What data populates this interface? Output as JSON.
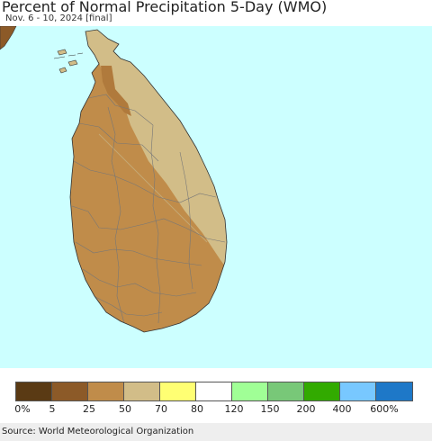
{
  "header": {
    "title": "Percent of Normal Precipitation 5-Day (WMO)",
    "subtitle": "Nov. 6 - 10, 2024 [final]"
  },
  "map": {
    "ocean_color": "#ccffff",
    "land_colors": {
      "below_50": "#c08c4a",
      "50_to_70": "#d2bd88",
      "5_to_25": "#8c5a28"
    }
  },
  "legend": {
    "colors": [
      "#5a3a14",
      "#8c5a28",
      "#c08c4a",
      "#d2bd88",
      "#ffff73",
      "#ffffff",
      "#a0ff96",
      "#78c878",
      "#32aa00",
      "#78c8ff",
      "#1e78c8"
    ],
    "labels": [
      "0%",
      "5",
      "25",
      "50",
      "70",
      "80",
      "120",
      "150",
      "200",
      "400",
      "600%"
    ]
  },
  "footer": {
    "source": "Source: World Meteorological Organization"
  }
}
